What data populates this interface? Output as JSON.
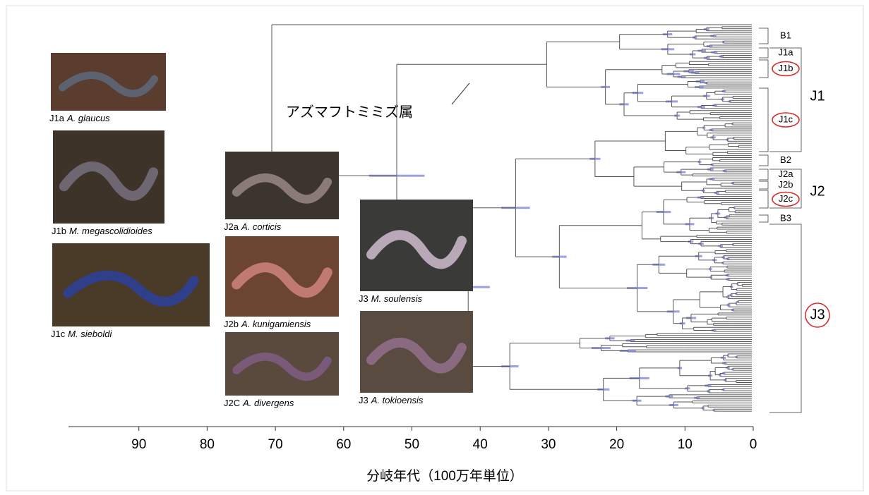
{
  "genus_label": "アズマフトミミズ属",
  "axis": {
    "label": "分岐年代（100万年単位）",
    "ticks": [
      90,
      80,
      70,
      60,
      50,
      40,
      30,
      20,
      10,
      0
    ]
  },
  "clades": [
    "B1",
    "J1a",
    "J1b",
    "J1c",
    "B2",
    "J2a",
    "J2b",
    "J2c",
    "B3"
  ],
  "groups": [
    "J1",
    "J2",
    "J3"
  ],
  "photos": [
    {
      "code": "J1a",
      "species": "A. glaucus"
    },
    {
      "code": "J1b",
      "species": "M. megascolidioides"
    },
    {
      "code": "J1c",
      "species": "M. sieboldi"
    },
    {
      "code": "J2a",
      "species": "A. corticis"
    },
    {
      "code": "J2b",
      "species": "A. kunigamiensis"
    },
    {
      "code": "J2C",
      "species": "A. divergens"
    },
    {
      "code": "J3",
      "species": "M. soulensis"
    },
    {
      "code": "J3",
      "species": "A. tokioensis"
    }
  ]
}
